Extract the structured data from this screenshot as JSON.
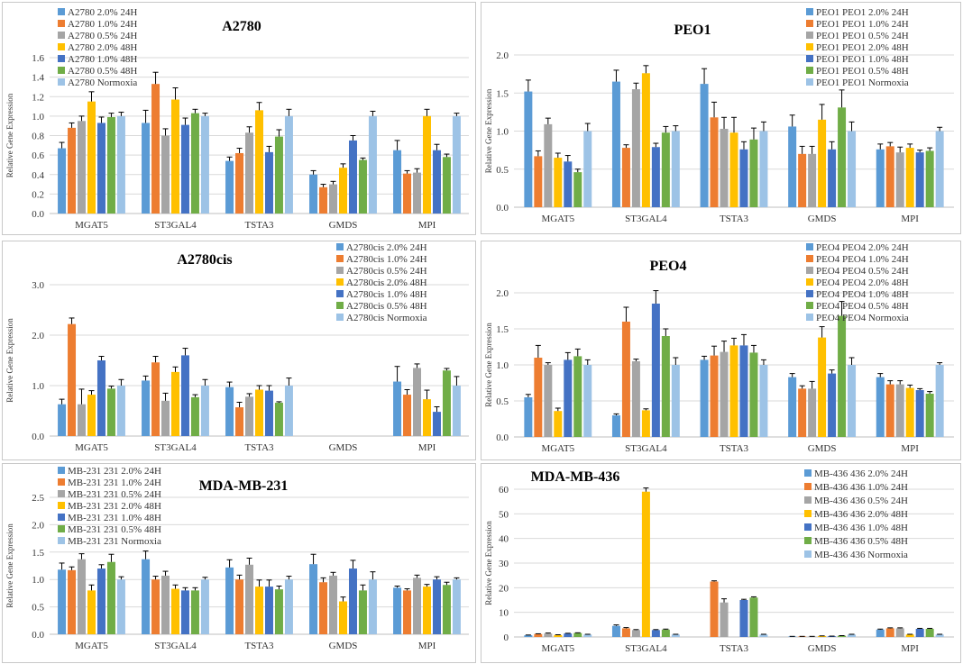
{
  "colors": [
    "#5b9bd5",
    "#ed7d31",
    "#a5a5a5",
    "#ffc000",
    "#4472c4",
    "#70ad47",
    "#9dc3e6"
  ],
  "chart_data": [
    {
      "type": "bar",
      "title": "A2780",
      "ylabel": "Relative Gene Expression",
      "xlabel": "",
      "ylim": [
        0,
        1.6
      ],
      "yticks": [
        0.0,
        0.2,
        0.4,
        0.6,
        0.8,
        1.0,
        1.2,
        1.4,
        1.6
      ],
      "tick_decimals": 1,
      "grid": true,
      "legend_position": "top-left",
      "categories": [
        "MGAT5",
        "ST3GAL4",
        "TSTA3",
        "GMDS",
        "MPI"
      ],
      "series": [
        {
          "name": "A2780 2.0% 24H",
          "values": [
            0.67,
            0.93,
            0.54,
            0.4,
            0.65
          ],
          "errors": [
            0.06,
            0.13,
            0.04,
            0.04,
            0.1
          ]
        },
        {
          "name": "A2780 1.0% 24H",
          "values": [
            0.88,
            1.33,
            0.62,
            0.27,
            0.41
          ],
          "errors": [
            0.05,
            0.12,
            0.05,
            0.03,
            0.03
          ]
        },
        {
          "name": "A2780 0.5% 24H",
          "values": [
            0.95,
            0.8,
            0.83,
            0.3,
            0.42
          ],
          "errors": [
            0.05,
            0.07,
            0.06,
            0.03,
            0.04
          ]
        },
        {
          "name": "A2780 2.0% 48H",
          "values": [
            1.15,
            1.17,
            1.06,
            0.47,
            1.0
          ],
          "errors": [
            0.1,
            0.12,
            0.08,
            0.04,
            0.07
          ]
        },
        {
          "name": "A2780 1.0% 48H",
          "values": [
            0.93,
            0.91,
            0.63,
            0.75,
            0.65
          ],
          "errors": [
            0.06,
            0.07,
            0.06,
            0.05,
            0.06
          ]
        },
        {
          "name": "A2780 0.5% 48H",
          "values": [
            0.99,
            1.03,
            0.79,
            0.55,
            0.58
          ],
          "errors": [
            0.04,
            0.04,
            0.07,
            0.02,
            0.03
          ]
        },
        {
          "name": "A2780 Normoxia",
          "values": [
            1.0,
            1.0,
            1.0,
            1.0,
            1.0
          ],
          "errors": [
            0.04,
            0.03,
            0.07,
            0.05,
            0.03
          ]
        }
      ]
    },
    {
      "type": "bar",
      "title": "PEO1",
      "ylabel": "Relative Gene Expression",
      "xlabel": "",
      "ylim": [
        0,
        2.0
      ],
      "yticks": [
        0.0,
        0.5,
        1.0,
        1.5,
        2.0
      ],
      "tick_decimals": 1,
      "grid": true,
      "legend_position": "top-right",
      "categories": [
        "MGAT5",
        "ST3GAL4",
        "TSTA3",
        "GMDS",
        "MPI"
      ],
      "series": [
        {
          "name": "PEO1  PEO1 2.0% 24H",
          "values": [
            1.52,
            1.65,
            1.62,
            1.06,
            0.76
          ],
          "errors": [
            0.15,
            0.15,
            0.2,
            0.15,
            0.07
          ]
        },
        {
          "name": "PEO1  PEO1 1.0% 24H",
          "values": [
            0.67,
            0.78,
            1.18,
            0.7,
            0.8
          ],
          "errors": [
            0.07,
            0.04,
            0.2,
            0.1,
            0.05
          ]
        },
        {
          "name": "PEO1  PEO1 0.5% 24H",
          "values": [
            1.09,
            1.55,
            1.03,
            0.7,
            0.72
          ],
          "errors": [
            0.08,
            0.08,
            0.15,
            0.1,
            0.07
          ]
        },
        {
          "name": "PEO1  PEO1 2.0% 48H",
          "values": [
            0.65,
            1.76,
            0.98,
            1.15,
            0.78
          ],
          "errors": [
            0.06,
            0.1,
            0.2,
            0.2,
            0.05
          ]
        },
        {
          "name": "PEO1  PEO1 1.0% 48H",
          "values": [
            0.6,
            0.79,
            0.76,
            0.76,
            0.72
          ],
          "errors": [
            0.08,
            0.05,
            0.1,
            0.1,
            0.03
          ]
        },
        {
          "name": "PEO1  PEO1 0.5% 48H",
          "values": [
            0.46,
            0.98,
            0.89,
            1.31,
            0.74
          ],
          "errors": [
            0.04,
            0.08,
            0.15,
            0.23,
            0.04
          ]
        },
        {
          "name": "PEO1  PEO1 Normoxia",
          "values": [
            1.0,
            1.0,
            1.0,
            1.0,
            1.0
          ],
          "errors": [
            0.1,
            0.07,
            0.12,
            0.12,
            0.05
          ]
        }
      ]
    },
    {
      "type": "bar",
      "title": "A2780cis",
      "ylabel": "Relative Gene Expression",
      "xlabel": "",
      "ylim": [
        0,
        3.0
      ],
      "yticks": [
        0.0,
        1.0,
        2.0,
        3.0
      ],
      "tick_decimals": 1,
      "grid": true,
      "legend_position": "top-right",
      "categories": [
        "MGAT5",
        "ST3GAL4",
        "TSTA3",
        "GMDS",
        "MPI"
      ],
      "series": [
        {
          "name": "A2780cis 2.0% 24H",
          "values": [
            0.63,
            1.1,
            0.97,
            null,
            1.08
          ],
          "errors": [
            0.1,
            0.09,
            0.1,
            null,
            0.3
          ]
        },
        {
          "name": "A2780cis 1.0% 24H",
          "values": [
            2.22,
            1.46,
            0.57,
            null,
            0.82
          ],
          "errors": [
            0.12,
            0.12,
            0.1,
            null,
            0.1
          ]
        },
        {
          "name": "A2780cis 0.5% 24H",
          "values": [
            0.63,
            0.7,
            0.78,
            null,
            1.35
          ],
          "errors": [
            0.3,
            0.15,
            0.06,
            null,
            0.08
          ]
        },
        {
          "name": "A2780cis 2.0% 48H",
          "values": [
            0.82,
            1.27,
            0.92,
            null,
            0.73
          ],
          "errors": [
            0.08,
            0.1,
            0.08,
            null,
            0.18
          ]
        },
        {
          "name": "A2780cis 1.0% 48H",
          "values": [
            1.5,
            1.6,
            0.9,
            null,
            0.48
          ],
          "errors": [
            0.08,
            0.14,
            0.1,
            null,
            0.1
          ]
        },
        {
          "name": "A2780cis 0.5% 48H",
          "values": [
            0.94,
            0.77,
            0.66,
            null,
            1.3
          ],
          "errors": [
            0.05,
            0.05,
            0.02,
            null,
            0.04
          ]
        },
        {
          "name": "A2780cis Normoxia",
          "values": [
            1.0,
            1.0,
            1.0,
            null,
            1.0
          ],
          "errors": [
            0.12,
            0.12,
            0.15,
            null,
            0.18
          ]
        }
      ]
    },
    {
      "type": "bar",
      "title": "PEO4",
      "ylabel": "Relative Gene Expression",
      "xlabel": "",
      "ylim": [
        0,
        2.0
      ],
      "yticks": [
        0.0,
        0.5,
        1.0,
        1.5,
        2.0
      ],
      "tick_decimals": 1,
      "grid": true,
      "legend_position": "top-right",
      "categories": [
        "MGAT5",
        "ST3GAL4",
        "TSTA3",
        "GMDS",
        "MPI"
      ],
      "series": [
        {
          "name": "PEO4  PEO4 2.0% 24H",
          "values": [
            0.55,
            0.3,
            1.07,
            0.83,
            0.83
          ],
          "errors": [
            0.04,
            0.02,
            0.05,
            0.05,
            0.05
          ]
        },
        {
          "name": "PEO4  PEO4 1.0% 24H",
          "values": [
            1.1,
            1.6,
            1.13,
            0.67,
            0.73
          ],
          "errors": [
            0.17,
            0.2,
            0.13,
            0.04,
            0.05
          ]
        },
        {
          "name": "PEO4  PEO4 0.5% 24H",
          "values": [
            1.0,
            1.05,
            1.18,
            0.67,
            0.73
          ],
          "errors": [
            0.03,
            0.03,
            0.15,
            0.1,
            0.05
          ]
        },
        {
          "name": "PEO4  PEO4 2.0% 48H",
          "values": [
            0.36,
            0.37,
            1.27,
            1.38,
            0.68
          ],
          "errors": [
            0.04,
            0.02,
            0.1,
            0.15,
            0.04
          ]
        },
        {
          "name": "PEO4  PEO4 1.0% 48H",
          "values": [
            1.07,
            1.85,
            1.27,
            0.88,
            0.65
          ],
          "errors": [
            0.1,
            0.18,
            0.15,
            0.05,
            0.02
          ]
        },
        {
          "name": "PEO4  PEO4 0.5% 48H",
          "values": [
            1.12,
            1.4,
            1.17,
            1.68,
            0.6
          ],
          "errors": [
            0.1,
            0.1,
            0.1,
            0.2,
            0.03
          ]
        },
        {
          "name": "PEO4  PEO4 Normoxia",
          "values": [
            1.0,
            1.0,
            1.0,
            1.0,
            1.0
          ],
          "errors": [
            0.07,
            0.1,
            0.07,
            0.1,
            0.03
          ]
        }
      ]
    },
    {
      "type": "bar",
      "title": "MDA-MB-231",
      "ylabel": "Relative Gene Expression",
      "xlabel": "",
      "ylim": [
        0,
        2.5
      ],
      "yticks": [
        0.0,
        0.5,
        1.0,
        1.5,
        2.0,
        2.5
      ],
      "tick_decimals": 1,
      "grid": true,
      "legend_position": "top-left",
      "categories": [
        "MGAT5",
        "ST3GAL4",
        "TSTA3",
        "GMDS",
        "MPI"
      ],
      "series": [
        {
          "name": "MB-231 231 2.0% 24H",
          "values": [
            1.18,
            1.37,
            1.22,
            1.28,
            0.85
          ],
          "errors": [
            0.12,
            0.15,
            0.14,
            0.18,
            0.03
          ]
        },
        {
          "name": "MB-231 231 1.0% 24H",
          "values": [
            1.17,
            1.0,
            1.0,
            0.95,
            0.8
          ],
          "errors": [
            0.06,
            0.06,
            0.08,
            0.08,
            0.03
          ]
        },
        {
          "name": "MB-231 231 0.5% 24H",
          "values": [
            1.37,
            1.07,
            1.27,
            1.07,
            1.03
          ],
          "errors": [
            0.1,
            0.08,
            0.12,
            0.06,
            0.05
          ]
        },
        {
          "name": "MB-231 231 2.0% 48H",
          "values": [
            0.8,
            0.83,
            0.87,
            0.6,
            0.87
          ],
          "errors": [
            0.1,
            0.07,
            0.12,
            0.08,
            0.04
          ]
        },
        {
          "name": "MB-231 231 1.0% 48H",
          "values": [
            1.2,
            0.8,
            0.87,
            1.2,
            1.0
          ],
          "errors": [
            0.07,
            0.05,
            0.12,
            0.15,
            0.05
          ]
        },
        {
          "name": "MB-231 231 0.5% 48H",
          "values": [
            1.32,
            0.8,
            0.82,
            0.8,
            0.9
          ],
          "errors": [
            0.14,
            0.05,
            0.06,
            0.1,
            0.05
          ]
        },
        {
          "name": "MB-231 231 Normoxia",
          "values": [
            1.0,
            1.0,
            1.0,
            1.0,
            1.0
          ],
          "errors": [
            0.05,
            0.04,
            0.06,
            0.14,
            0.03
          ]
        }
      ]
    },
    {
      "type": "bar",
      "title": "MDA-MB-436",
      "ylabel": "Relative Gene Expression",
      "xlabel": "",
      "ylim": [
        0,
        60
      ],
      "yticks": [
        0,
        10,
        20,
        30,
        40,
        50,
        60
      ],
      "tick_decimals": 0,
      "grid": true,
      "legend_position": "top-right",
      "categories": [
        "MGAT5",
        "ST3GAL4",
        "TSTA3",
        "GMDS",
        "MPI"
      ],
      "series": [
        {
          "name": "MB-436 436 2.0% 24H",
          "values": [
            0.7,
            4.5,
            0,
            0.2,
            3.0
          ],
          "errors": [
            0.1,
            0.4,
            0,
            0.05,
            0.2
          ]
        },
        {
          "name": "MB-436 436 1.0% 24H",
          "values": [
            1.2,
            3.5,
            22.5,
            0.2,
            3.5
          ],
          "errors": [
            0.1,
            0.3,
            0.3,
            0.05,
            0.2
          ]
        },
        {
          "name": "MB-436 436 0.5% 24H",
          "values": [
            1.4,
            2.8,
            14.0,
            0.2,
            3.5
          ],
          "errors": [
            0.2,
            0.2,
            1.5,
            0.05,
            0.2
          ]
        },
        {
          "name": "MB-436 436 2.0% 48H",
          "values": [
            0.8,
            59.0,
            0,
            0.4,
            1.0
          ],
          "errors": [
            0.1,
            1.5,
            0,
            0.05,
            0.1
          ]
        },
        {
          "name": "MB-436 436 1.0% 48H",
          "values": [
            1.4,
            2.8,
            15.0,
            0.3,
            3.3
          ],
          "errors": [
            0.1,
            0.2,
            0.3,
            0.05,
            0.2
          ]
        },
        {
          "name": "MB-436 436 0.5% 48H",
          "values": [
            1.6,
            3.0,
            16.0,
            0.5,
            3.3
          ],
          "errors": [
            0.1,
            0.2,
            0.3,
            0.05,
            0.2
          ]
        },
        {
          "name": "MB-436 436 Normoxia",
          "values": [
            1.0,
            1.0,
            1.0,
            1.0,
            1.0
          ],
          "errors": [
            0.1,
            0.1,
            0.1,
            0.1,
            0.1
          ]
        }
      ]
    }
  ]
}
